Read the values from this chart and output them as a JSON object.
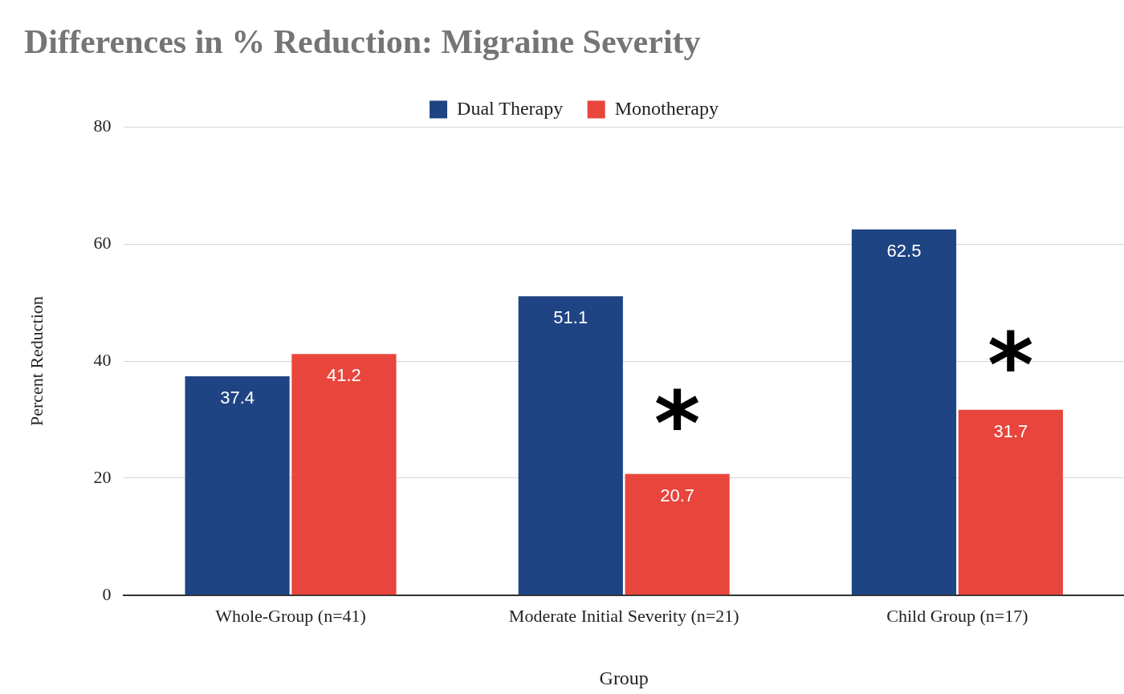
{
  "chart_data": {
    "type": "bar",
    "title": "Differences in % Reduction: Migraine Severity",
    "xlabel": "Group",
    "ylabel": "Percent Reduction",
    "categories": [
      "Whole-Group (n=41)",
      "Moderate Initial Severity (n=21)",
      "Child Group (n=17)"
    ],
    "series": [
      {
        "name": "Dual Therapy",
        "color": "#1f4483",
        "values": [
          37.4,
          51.1,
          62.5
        ]
      },
      {
        "name": "Monotherapy",
        "color": "#e8453c",
        "values": [
          41.2,
          20.7,
          31.7
        ]
      }
    ],
    "ylim": [
      0,
      80
    ],
    "yticks": [
      0,
      20,
      40,
      60,
      80
    ],
    "grid": "y",
    "legend": "top",
    "data_labels": true,
    "annotations": [
      {
        "text": "*",
        "x": "Moderate Initial Severity (n=21)",
        "y": 32
      },
      {
        "text": "*",
        "x": "Child Group (n=17)",
        "y": 42
      }
    ]
  }
}
